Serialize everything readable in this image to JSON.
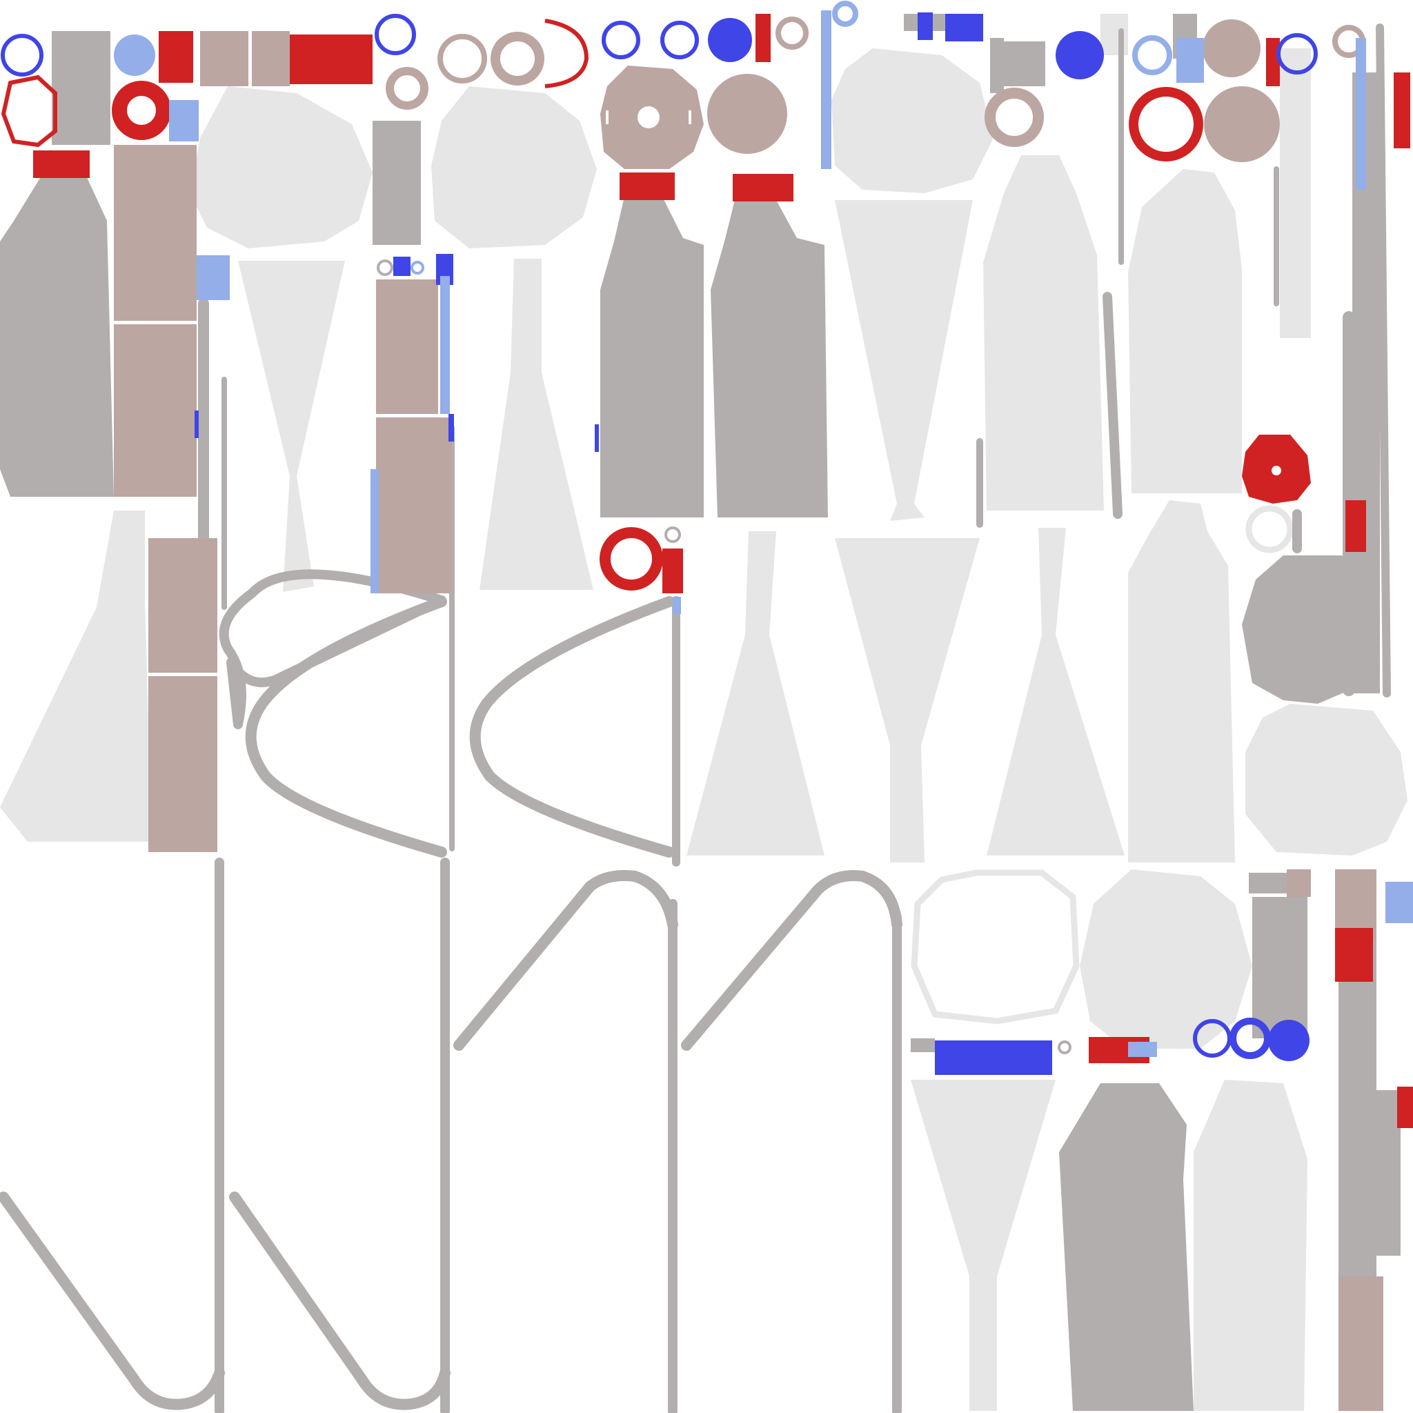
{
  "palette": {
    "background": "#ffffff",
    "grey": "#b3aeae",
    "taupe": "#bca6a1",
    "light": "#e6e6e6",
    "red": "#d02222",
    "blue": "#3f45e6",
    "light_blue": "#93aee8"
  }
}
